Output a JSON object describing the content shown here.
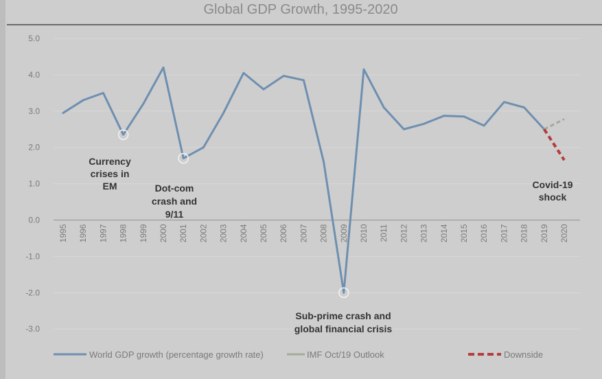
{
  "chart_data": {
    "type": "line",
    "title": "Global GDP Growth, 1995-2020",
    "xlabel": "",
    "ylabel": "",
    "ylim": [
      -3.5,
      5.0
    ],
    "yticks": [
      "5.0",
      "4.0",
      "3.0",
      "2.0",
      "1.0",
      "0.0",
      "-1.0",
      "-2.0",
      "-3.0"
    ],
    "categories": [
      "1995",
      "1996",
      "1997",
      "1998",
      "1999",
      "2000",
      "2001",
      "2002",
      "2003",
      "2004",
      "2005",
      "2006",
      "2007",
      "2008",
      "2009",
      "2010",
      "2011",
      "2012",
      "2013",
      "2014",
      "2015",
      "2016",
      "2017",
      "2018",
      "2019",
      "2020"
    ],
    "grid": true,
    "legend_placement": "bottom",
    "series": [
      {
        "name": "World GDP growth (percentage growth rate)",
        "color": "#6e8fb0",
        "style": "solid",
        "x": [
          "1995",
          "1996",
          "1997",
          "1998",
          "1999",
          "2000",
          "2001",
          "2002",
          "2003",
          "2004",
          "2005",
          "2006",
          "2007",
          "2008",
          "2009",
          "2010",
          "2011",
          "2012",
          "2013",
          "2014",
          "2015",
          "2016",
          "2017",
          "2018",
          "2019"
        ],
        "values": [
          2.95,
          3.3,
          3.5,
          2.35,
          3.2,
          4.2,
          1.7,
          2.0,
          2.95,
          4.05,
          3.6,
          3.97,
          3.85,
          1.6,
          -2.0,
          4.15,
          3.1,
          2.5,
          2.65,
          2.87,
          2.85,
          2.6,
          3.25,
          3.1,
          2.5
        ]
      },
      {
        "name": "IMF Oct/19 Outlook",
        "color": "#a3ab99",
        "style": "dashed",
        "x": [
          "2019",
          "2020"
        ],
        "values": [
          2.5,
          2.78
        ]
      },
      {
        "name": "Downside",
        "color": "#b43c3c",
        "style": "dashed",
        "x": [
          "2019",
          "2020"
        ],
        "values": [
          2.5,
          1.65
        ]
      }
    ],
    "highlights": [
      {
        "x": "1998",
        "y": 2.35
      },
      {
        "x": "2001",
        "y": 1.7
      },
      {
        "x": "2009",
        "y": -2.0
      }
    ],
    "annotations": [
      {
        "key": "em",
        "lines": [
          "Currency",
          "crises in",
          "EM"
        ]
      },
      {
        "key": "dotcom",
        "lines": [
          "Dot-com",
          "crash and",
          "9/11"
        ]
      },
      {
        "key": "subprime",
        "lines": [
          "Sub-prime  crash and",
          "global financial crisis"
        ]
      },
      {
        "key": "covid",
        "lines": [
          "Covid-19",
          "shock"
        ]
      }
    ]
  }
}
